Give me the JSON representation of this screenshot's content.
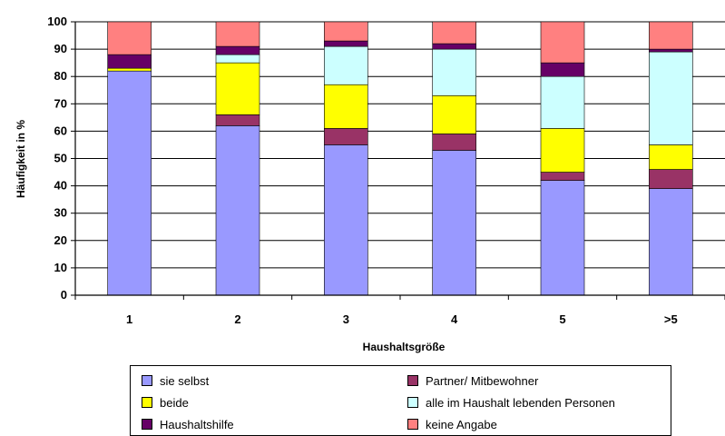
{
  "chart_data": {
    "type": "bar",
    "stacked": true,
    "xlabel": "Haushaltsgröße",
    "ylabel": "Häufigkeit in %",
    "ylim": [
      0,
      100
    ],
    "yticks": [
      0,
      10,
      20,
      30,
      40,
      50,
      60,
      70,
      80,
      90,
      100
    ],
    "categories": [
      "1",
      "2",
      "3",
      "4",
      "5",
      ">5"
    ],
    "series": [
      {
        "name": "sie selbst",
        "color": "#9999ff",
        "values": [
          82,
          62,
          55,
          53,
          42,
          39
        ]
      },
      {
        "name": "Partner/ Mitbewohner",
        "color": "#993366",
        "values": [
          0,
          4,
          6,
          6,
          3,
          7
        ]
      },
      {
        "name": "beide",
        "color": "#ffff00",
        "values": [
          1,
          19,
          16,
          14,
          16,
          9
        ]
      },
      {
        "name": "alle im Haushalt lebenden Personen",
        "color": "#ccffff",
        "values": [
          0,
          3,
          14,
          17,
          19,
          34
        ]
      },
      {
        "name": "Haushaltshilfe",
        "color": "#660066",
        "values": [
          5,
          3,
          2,
          2,
          5,
          1
        ]
      },
      {
        "name": "keine Angabe",
        "color": "#ff8080",
        "values": [
          12,
          9,
          7,
          8,
          15,
          10
        ]
      }
    ],
    "grid": true,
    "legend_position": "bottom"
  }
}
